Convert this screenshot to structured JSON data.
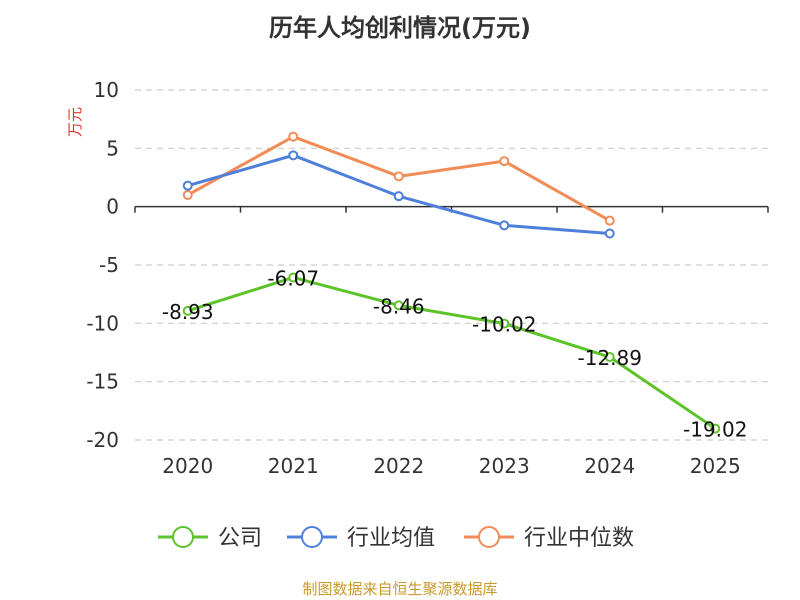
{
  "chart_data": {
    "type": "line",
    "title": "历年人均创利情况(万元)",
    "ylabel": "万元",
    "xlabel": "",
    "categories": [
      "2020",
      "2021",
      "2022",
      "2023",
      "2024",
      "2025"
    ],
    "ylim": [
      -20,
      10
    ],
    "yticks": [
      10,
      5,
      0,
      -5,
      -10,
      -15,
      -20
    ],
    "ytick_labels": [
      "10",
      "5",
      "0",
      "-5",
      "-10",
      "-15",
      "-20"
    ],
    "grid": "horizontal dashed",
    "legend_position": "bottom",
    "series": [
      {
        "name": "公司",
        "values": [
          -8.93,
          -6.07,
          -8.46,
          -10.02,
          -12.89,
          -19.02
        ],
        "data_labels": [
          "-8.93",
          "-6.07",
          "-8.46",
          "-10.02",
          "-12.89",
          "-19.02"
        ],
        "color": "#5ec32b"
      },
      {
        "name": "行业均值",
        "values": [
          1.8,
          4.4,
          0.9,
          -1.6,
          -2.3,
          null
        ],
        "color": "#4e7fd9"
      },
      {
        "name": "行业中位数",
        "values": [
          1.0,
          6.0,
          2.6,
          3.9,
          -1.2,
          null
        ],
        "color": "#f28c56"
      }
    ]
  },
  "source_note": "制图数据来自恒生聚源数据库"
}
